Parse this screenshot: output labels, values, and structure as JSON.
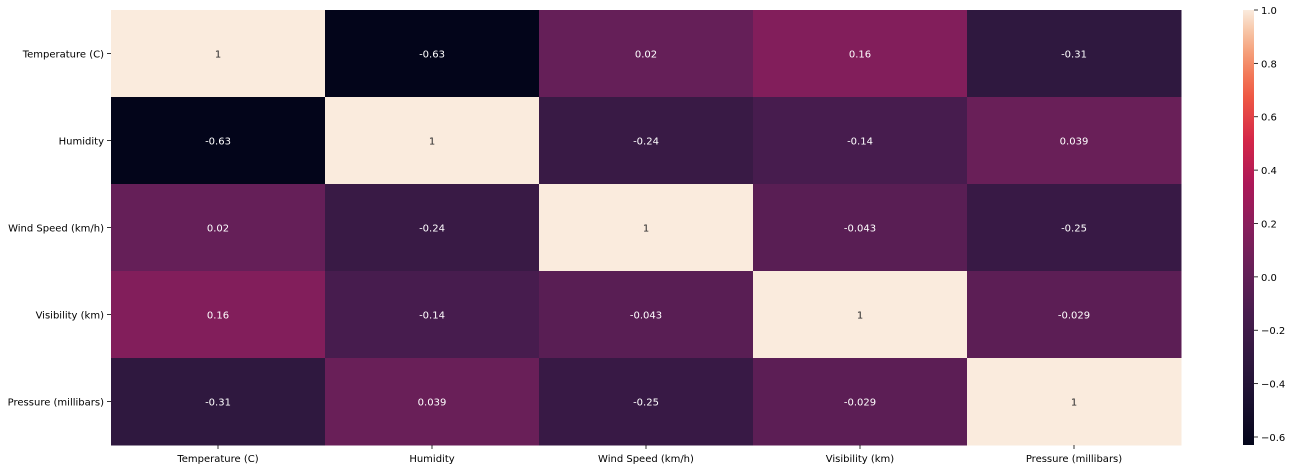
{
  "chart_data": {
    "type": "heatmap",
    "title": "",
    "xlabel": "",
    "ylabel": "",
    "row_labels": [
      "Temperature (C)",
      "Humidity",
      "Wind Speed (km/h)",
      "Visibility (km)",
      "Pressure (millibars)"
    ],
    "column_labels": [
      "Temperature (C)",
      "Humidity",
      "Wind Speed (km/h)",
      "Visibility (km)",
      "Pressure (millibars)"
    ],
    "values": [
      [
        1,
        -0.63,
        0.02,
        0.16,
        -0.31
      ],
      [
        -0.63,
        1,
        -0.24,
        -0.14,
        0.039
      ],
      [
        0.02,
        -0.24,
        1,
        -0.043,
        -0.25
      ],
      [
        0.16,
        -0.14,
        -0.043,
        1,
        -0.029
      ],
      [
        -0.31,
        0.039,
        -0.25,
        -0.029,
        1
      ]
    ],
    "annotations": [
      [
        "1",
        "-0.63",
        "0.02",
        "0.16",
        "-0.31"
      ],
      [
        "-0.63",
        "1",
        "-0.24",
        "-0.14",
        "0.039"
      ],
      [
        "0.02",
        "-0.24",
        "1",
        "-0.043",
        "-0.25"
      ],
      [
        "0.16",
        "-0.14",
        "-0.043",
        "1",
        "-0.029"
      ],
      [
        "-0.31",
        "0.039",
        "-0.25",
        "-0.029",
        "1"
      ]
    ],
    "colormap": "rocket",
    "colorbar": {
      "range": [
        -0.63,
        1.0
      ],
      "ticks": [
        -0.6,
        -0.4,
        -0.2,
        0.0,
        0.2,
        0.4,
        0.6,
        0.8,
        1.0
      ],
      "tick_labels": [
        "−0.6",
        "−0.4",
        "−0.2",
        "0.0",
        "0.2",
        "0.4",
        "0.6",
        "0.8",
        "1.0"
      ]
    },
    "colors": {
      "annotation_light": "#ffffff",
      "annotation_dark": "#262626"
    }
  }
}
